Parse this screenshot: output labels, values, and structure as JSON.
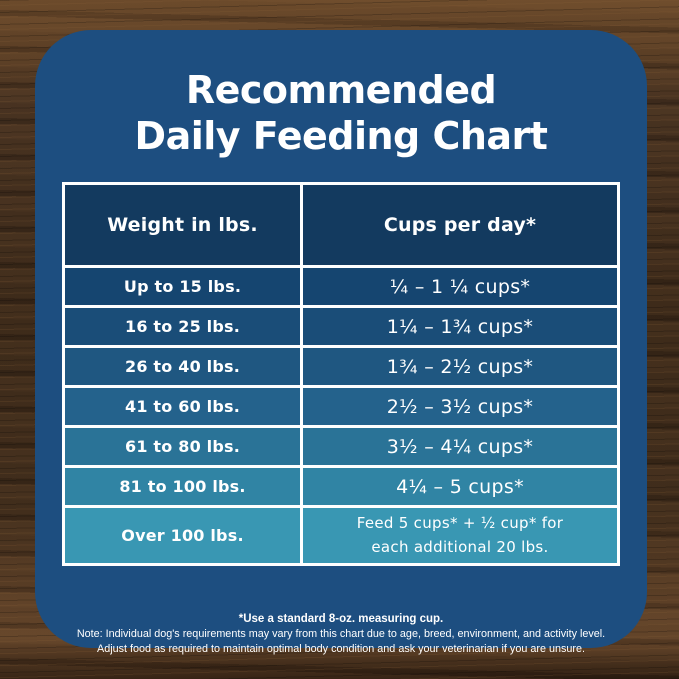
{
  "card": {
    "title_line1": "Recommended",
    "title_line2": "Daily Feeding Chart"
  },
  "table": {
    "headers": {
      "weight": "Weight in lbs.",
      "cups": "Cups per day*"
    },
    "rows": [
      {
        "weight": "Up to 15 lbs.",
        "cups": "¼ – 1 ¼ cups*"
      },
      {
        "weight": "16 to 25 lbs.",
        "cups": "1¼ – 1¾ cups*"
      },
      {
        "weight": "26 to 40 lbs.",
        "cups": "1¾ – 2½ cups*"
      },
      {
        "weight": "41 to 60 lbs.",
        "cups": "2½ – 3½ cups*"
      },
      {
        "weight": "61 to 80 lbs.",
        "cups": "3½ – 4¼ cups*"
      },
      {
        "weight": "81 to 100 lbs.",
        "cups": "4¼ – 5 cups*"
      },
      {
        "weight": "Over 100 lbs.",
        "cups": "Feed 5 cups* + ½ cup* for\neach additional 20 lbs."
      }
    ]
  },
  "notes": {
    "cup_note": "*Use a standard 8-oz. measuring cup.",
    "note_line1": "Note: Individual dog's requirements may vary from this chart due to age, breed, environment, and activity level.",
    "note_line2": "Adjust food as required to maintain optimal body condition and ask your veterinarian if you are unsure."
  },
  "colors": {
    "card_background": "#1d4e80",
    "table_border": "#ffffff",
    "header_row": "#133a5f",
    "text": "#ffffff",
    "row_colors": [
      "#154570",
      "#1a4d78",
      "#1f5781",
      "#24628c",
      "#2a7397",
      "#3084a4",
      "#3997b3"
    ]
  },
  "chart_data": {
    "type": "table",
    "title": "Recommended Daily Feeding Chart",
    "columns": [
      "Weight in lbs.",
      "Cups per day*"
    ],
    "rows": [
      [
        "Up to 15 lbs.",
        "¼ – 1 ¼ cups*"
      ],
      [
        "16 to 25 lbs.",
        "1¼ – 1¾ cups*"
      ],
      [
        "26 to 40 lbs.",
        "1¾ – 2½ cups*"
      ],
      [
        "41 to 60 lbs.",
        "2½ – 3½ cups*"
      ],
      [
        "61 to 80 lbs.",
        "3½ – 4¼ cups*"
      ],
      [
        "81 to 100 lbs.",
        "4¼ – 5 cups*"
      ],
      [
        "Over 100 lbs.",
        "Feed 5 cups* + ½ cup* for each additional 20 lbs."
      ]
    ],
    "footnotes": [
      "*Use a standard 8-oz. measuring cup.",
      "Note: Individual dog's requirements may vary from this chart due to age, breed, environment, and activity level.",
      "Adjust food as required to maintain optimal body condition and ask your veterinarian if you are unsure."
    ],
    "layout_hints": {
      "header_position": "top",
      "column_split_ratio": [
        0.42,
        0.58
      ],
      "row_color_gradient": "dark-navy-to-teal"
    }
  }
}
